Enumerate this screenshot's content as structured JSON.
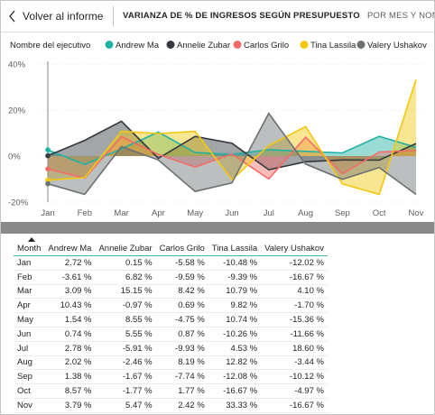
{
  "topbar": {
    "back_label": "Volver al informe",
    "title": "VARIANZA DE % DE INGRESOS SEGÚN PRESUPUESTO",
    "subtitle": "POR MES Y NOMBRE"
  },
  "legend": {
    "title": "Nombre del ejecutivo"
  },
  "chart_data": {
    "type": "area",
    "categories": [
      "Jan",
      "Feb",
      "Mar",
      "Apr",
      "May",
      "Jun",
      "Jul",
      "Aug",
      "Sep",
      "Oct",
      "Nov"
    ],
    "yticks": [
      "40%",
      "20%",
      "0%",
      "-20%"
    ],
    "ylim": [
      -20,
      40
    ],
    "series": [
      {
        "name": "Andrew Ma",
        "color": "#20b2a2",
        "values": [
          2.72,
          -3.61,
          3.09,
          10.43,
          1.54,
          0.74,
          2.78,
          2.02,
          1.38,
          8.57,
          3.79
        ]
      },
      {
        "name": "Annelie Zubar",
        "color": "#34393f",
        "values": [
          0.15,
          6.82,
          15.15,
          -0.97,
          8.55,
          5.55,
          -5.91,
          -2.46,
          -1.67,
          -1.77,
          5.47
        ]
      },
      {
        "name": "Carlos Grilo",
        "color": "#f36c6a",
        "values": [
          -5.58,
          -9.59,
          8.42,
          0.69,
          -4.75,
          0.87,
          -9.93,
          8.19,
          -7.74,
          1.77,
          2.42
        ]
      },
      {
        "name": "Tina Lassila",
        "color": "#f2c80f",
        "values": [
          -10.48,
          -9.39,
          10.79,
          9.82,
          10.74,
          -10.26,
          4.53,
          12.82,
          -12.08,
          -16.67,
          33.33
        ]
      },
      {
        "name": "Valery Ushakov",
        "color": "#6b7070",
        "values": [
          -12.02,
          -16.67,
          4.1,
          -1.7,
          -15.36,
          -11.66,
          18.6,
          -3.44,
          -10.12,
          -4.97,
          -16.67
        ]
      }
    ]
  },
  "table": {
    "headers": [
      "Month",
      "Andrew Ma",
      "Annelie Zubar",
      "Carlos Grilo",
      "Tina Lassila",
      "Valery Ushakov"
    ],
    "rows": [
      [
        "Jan",
        "2.72 %",
        "0.15 %",
        "-5.58 %",
        "-10.48 %",
        "-12.02 %"
      ],
      [
        "Feb",
        "-3.61 %",
        "6.82 %",
        "-9.59 %",
        "-9.39 %",
        "-16.67 %"
      ],
      [
        "Mar",
        "3.09 %",
        "15.15 %",
        "8.42 %",
        "10.79 %",
        "4.10 %"
      ],
      [
        "Apr",
        "10.43 %",
        "-0.97 %",
        "0.69 %",
        "9.82 %",
        "-1.70 %"
      ],
      [
        "May",
        "1.54 %",
        "8.55 %",
        "-4.75 %",
        "10.74 %",
        "-15.36 %"
      ],
      [
        "Jun",
        "0.74 %",
        "5.55 %",
        "0.87 %",
        "-10.26 %",
        "-11.66 %"
      ],
      [
        "Jul",
        "2.78 %",
        "-5.91 %",
        "-9.93 %",
        "4.53 %",
        "18.60 %"
      ],
      [
        "Aug",
        "2.02 %",
        "-2.46 %",
        "8.19 %",
        "12.82 %",
        "-3.44 %"
      ],
      [
        "Sep",
        "1.38 %",
        "-1.67 %",
        "-7.74 %",
        "-12.08 %",
        "-10.12 %"
      ],
      [
        "Oct",
        "8.57 %",
        "-1.77 %",
        "1.77 %",
        "-16.67 %",
        "-4.97 %"
      ],
      [
        "Nov",
        "3.79 %",
        "5.47 %",
        "2.42 %",
        "33.33 %",
        "-16.67 %"
      ]
    ]
  }
}
